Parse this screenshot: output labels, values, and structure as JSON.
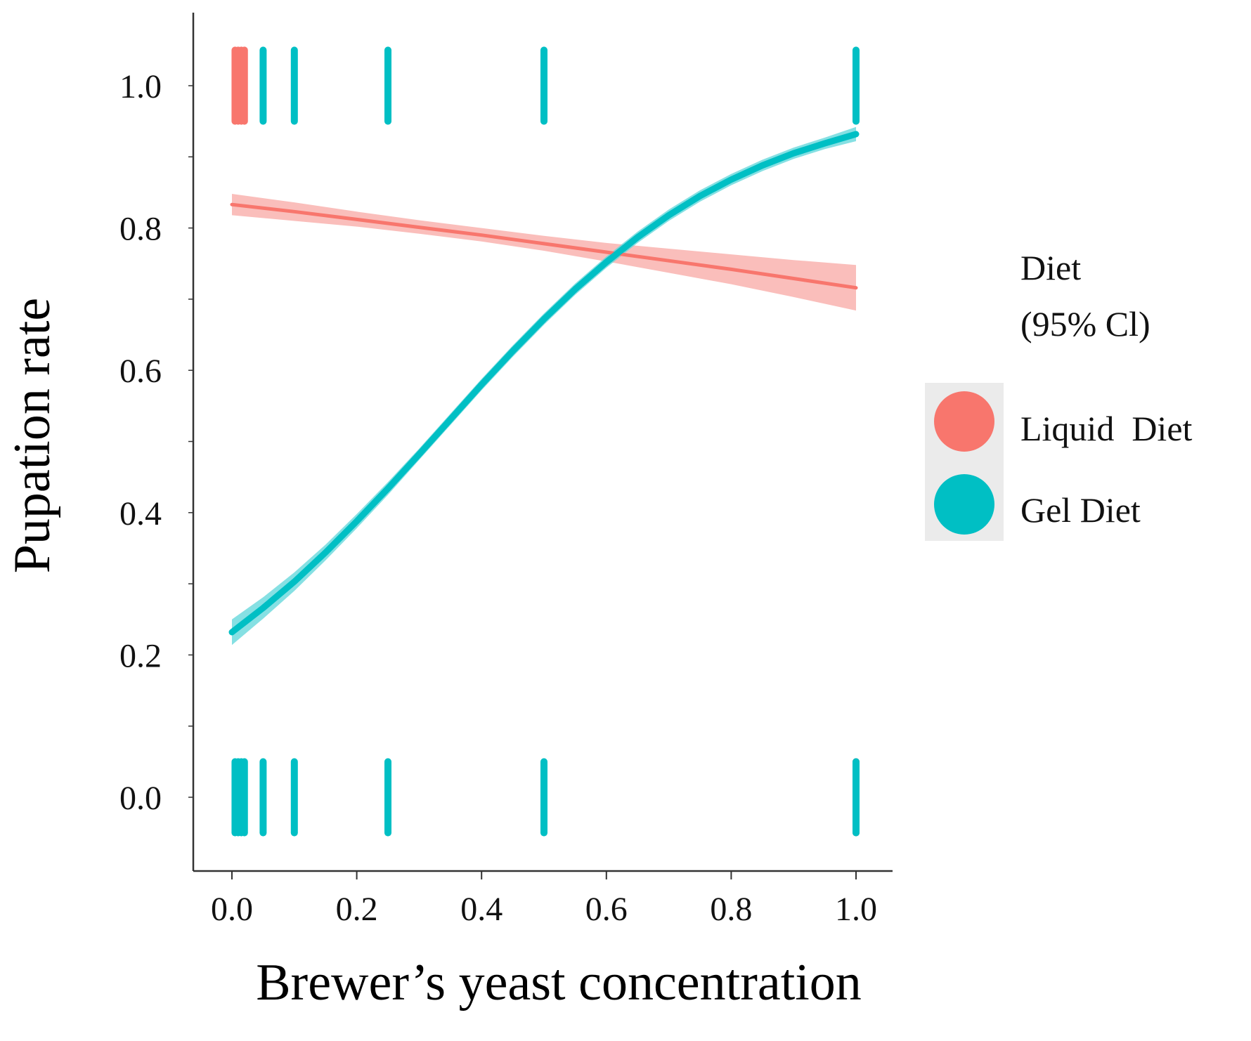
{
  "chart_data": {
    "type": "line",
    "xlabel": "Brewer’s yeast concentration",
    "ylabel": "Pupation rate",
    "xlim": [
      -0.06,
      1.06
    ],
    "ylim": [
      -0.1,
      1.1
    ],
    "x_ticks": [
      "0.0",
      "0.2",
      "0.4",
      "0.6",
      "0.8",
      "1.0"
    ],
    "x_tick_values": [
      0.0,
      0.2,
      0.4,
      0.6,
      0.8,
      1.0
    ],
    "y_ticks": [
      "0.0",
      "0.2",
      "0.4",
      "0.6",
      "0.8",
      "1.0"
    ],
    "y_tick_values": [
      0.0,
      0.2,
      0.4,
      0.6,
      0.8,
      1.0
    ],
    "grid": false,
    "legend": {
      "title_line1": "Diet",
      "title_line2": "(95% Cl)",
      "placement": "right"
    },
    "series": [
      {
        "name": "Liquid  Diet",
        "color": "#F8766D",
        "band_color": "#F8A8A4",
        "x": [
          0.0,
          0.1,
          0.2,
          0.3,
          0.4,
          0.5,
          0.6,
          0.7,
          0.8,
          0.9,
          1.0
        ],
        "y": [
          0.833,
          0.823,
          0.812,
          0.801,
          0.79,
          0.778,
          0.766,
          0.754,
          0.742,
          0.729,
          0.716
        ],
        "ci_low": [
          0.818,
          0.81,
          0.802,
          0.792,
          0.781,
          0.768,
          0.753,
          0.737,
          0.721,
          0.703,
          0.684
        ],
        "ci_high": [
          0.848,
          0.836,
          0.823,
          0.811,
          0.8,
          0.789,
          0.779,
          0.771,
          0.763,
          0.755,
          0.748
        ],
        "rug_top": [
          0.005,
          0.01,
          0.015,
          0.02
        ],
        "rug_bottom": [
          1.0
        ]
      },
      {
        "name": "Gel Diet",
        "color": "#00BFC4",
        "band_color": "#5DD5D9",
        "x": [
          0.0,
          0.05,
          0.1,
          0.15,
          0.2,
          0.25,
          0.3,
          0.35,
          0.4,
          0.45,
          0.5,
          0.55,
          0.6,
          0.65,
          0.7,
          0.75,
          0.8,
          0.85,
          0.9,
          0.95,
          1.0
        ],
        "y": [
          0.232,
          0.266,
          0.303,
          0.344,
          0.388,
          0.434,
          0.482,
          0.531,
          0.58,
          0.627,
          0.672,
          0.714,
          0.752,
          0.787,
          0.818,
          0.845,
          0.868,
          0.888,
          0.905,
          0.919,
          0.932
        ],
        "ci_low": [
          0.214,
          0.251,
          0.29,
          0.333,
          0.378,
          0.425,
          0.474,
          0.523,
          0.572,
          0.619,
          0.664,
          0.706,
          0.744,
          0.779,
          0.81,
          0.837,
          0.86,
          0.88,
          0.897,
          0.911,
          0.922
        ],
        "ci_high": [
          0.25,
          0.281,
          0.316,
          0.355,
          0.398,
          0.443,
          0.49,
          0.539,
          0.588,
          0.635,
          0.68,
          0.722,
          0.76,
          0.795,
          0.826,
          0.853,
          0.876,
          0.896,
          0.913,
          0.927,
          0.942
        ],
        "rug_top": [
          0.05,
          0.1,
          0.25,
          0.5,
          1.0
        ],
        "rug_bottom": [
          0.005,
          0.01,
          0.015,
          0.02,
          0.05,
          0.1,
          0.25,
          0.5,
          1.0
        ]
      }
    ]
  }
}
